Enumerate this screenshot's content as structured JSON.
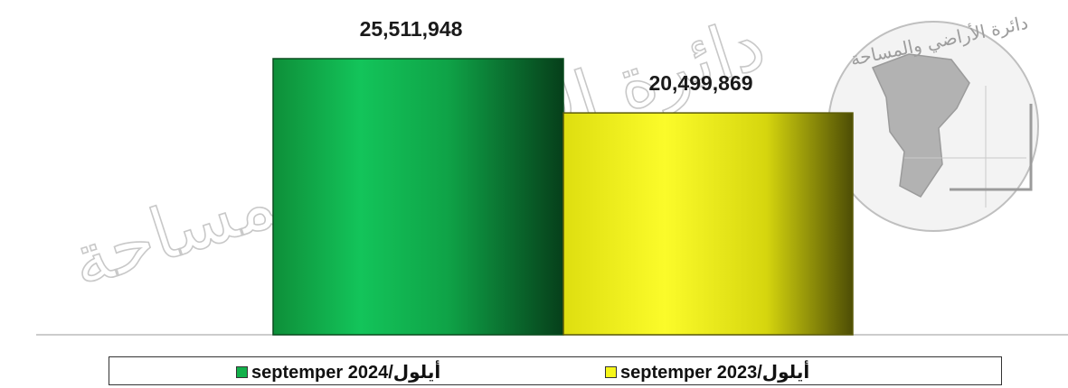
{
  "chart_data": {
    "type": "bar",
    "title": "",
    "xlabel": "",
    "ylabel": "",
    "ylim": [
      0,
      30000000
    ],
    "grid": false,
    "legend_placement": "bottom",
    "series": [
      {
        "name": "septemper 2024/أيلول",
        "value": 25511948,
        "label": "25,511,948",
        "color": "#12b04a"
      },
      {
        "name": "septemper 2023/أيلول",
        "value": 20499869,
        "label": "20,499,869",
        "color": "#f6f61a"
      }
    ]
  },
  "watermark": {
    "text": "دائرة الأراضي والمساحة"
  },
  "colors": {
    "series_2024": "#12b04a",
    "series_2023": "#f6f61a",
    "baseline": "#bbbbbb"
  }
}
